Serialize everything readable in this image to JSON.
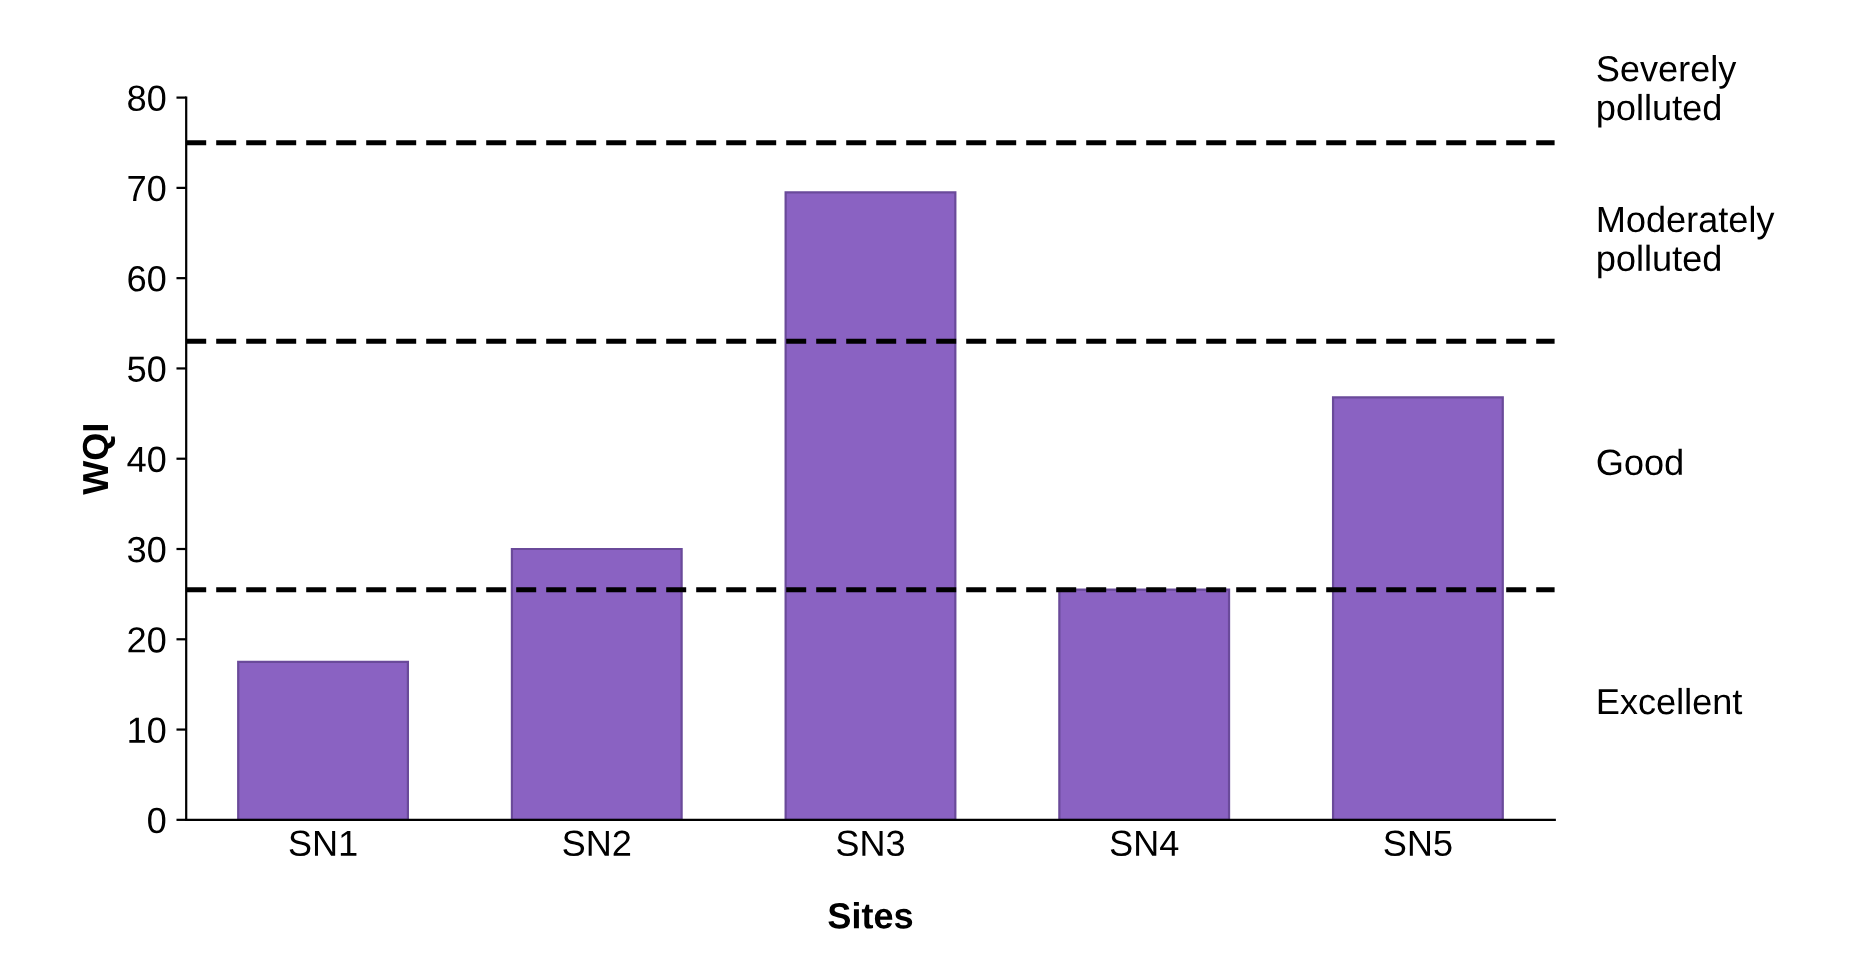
{
  "chart_data": {
    "type": "bar",
    "xlabel": "Sites",
    "ylabel": "WQI",
    "categories": [
      "SN1",
      "SN2",
      "SN3",
      "SN4",
      "SN5"
    ],
    "values": [
      17.5,
      30,
      69.5,
      25.5,
      46.8
    ],
    "color": "#8a62c2",
    "ylim": [
      0,
      80
    ],
    "yticks": [
      0,
      10,
      20,
      30,
      40,
      50,
      60,
      70,
      80
    ],
    "grid": false,
    "ref_lines": [
      {
        "axis": "y",
        "value": 25.5,
        "line_style": "dashed",
        "color": "#000000"
      },
      {
        "axis": "y",
        "value": 53,
        "line_style": "dashed",
        "color": "#000000"
      },
      {
        "axis": "y",
        "value": 75,
        "line_style": "dashed",
        "color": "#000000"
      }
    ],
    "annotations": [
      "Excellent",
      "Good",
      "Moderately\npolluted",
      "Severely\npolluted"
    ]
  }
}
